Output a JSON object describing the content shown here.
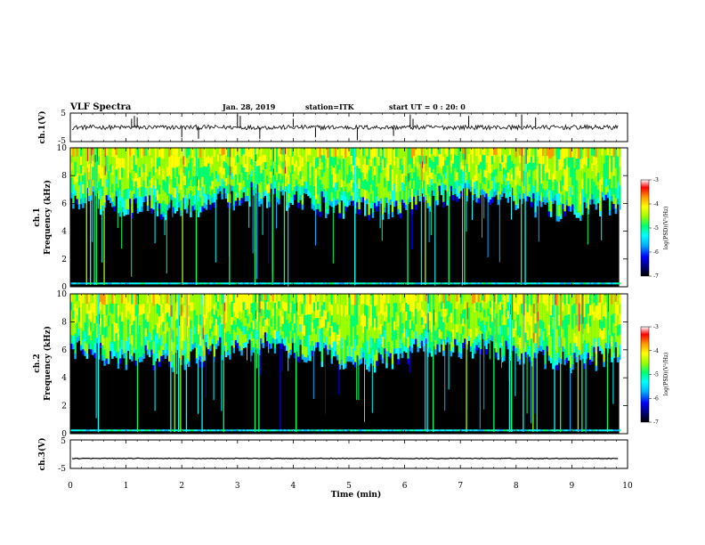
{
  "header": {
    "title": "VLF Spectra",
    "date": "Jan. 28, 2019",
    "station": "station=ITK",
    "start": "start UT =  0 : 20: 0"
  },
  "colors": {
    "spectrogram_background": "#000000",
    "trace": "#000000",
    "colormap": [
      "#000000",
      "#00007a",
      "#0000ff",
      "#00b0ff",
      "#00ffff",
      "#00ff70",
      "#9aff00",
      "#ffff00",
      "#ff9a00",
      "#ff0000",
      "#ffffff"
    ]
  },
  "chart_data": [
    {
      "type": "line",
      "name": "ch1-waveform",
      "ylabel": "ch.1(V)",
      "yticks": [
        "5",
        "-5"
      ],
      "ylim": [
        -5,
        5
      ],
      "xlim": [
        0,
        10
      ],
      "baseline": 0,
      "spike_times_min": [
        1.1,
        1.15,
        1.2,
        2.0,
        2.3,
        3.0,
        3.05,
        3.4,
        4.0,
        4.4,
        5.15,
        5.8,
        6.1,
        6.15,
        7.15,
        8.1,
        8.35
      ],
      "spike_amplitudes": [
        3,
        4,
        3.5,
        -3.5,
        -4,
        4.5,
        4,
        -4,
        3,
        -3.5,
        -4.5,
        -3,
        4.5,
        3,
        4,
        4.5,
        3.5
      ]
    },
    {
      "type": "heatmap",
      "name": "ch1-spectrogram",
      "ylabel": "ch.1 Frequency (kHz)",
      "ylabel_lines": [
        "ch.1",
        "Frequency (kHz)"
      ],
      "yticks": [
        "0",
        "2",
        "4",
        "6",
        "8",
        "10"
      ],
      "ylim": [
        0,
        10
      ],
      "xlim": [
        0,
        9.85
      ],
      "noise_floor_khz": 6.3,
      "colorbar": {
        "label": "log(PSD)(V²/Hz)",
        "ticks": [
          "-3",
          "-4",
          "-5",
          "-6",
          "-7"
        ],
        "range": [
          -7,
          -3
        ]
      }
    },
    {
      "type": "heatmap",
      "name": "ch2-spectrogram",
      "ylabel": "ch.2 Frequency (kHz)",
      "ylabel_lines": [
        "ch.2",
        "Frequency (kHz)"
      ],
      "yticks": [
        "0",
        "2",
        "4",
        "6",
        "8",
        "10"
      ],
      "ylim": [
        0,
        10
      ],
      "xlim": [
        0,
        9.85
      ],
      "noise_floor_khz": 6.0,
      "colorbar": {
        "label": "log(PSD)(V²/Hz)",
        "ticks": [
          "-3",
          "-4",
          "-5",
          "-6",
          "-7"
        ],
        "range": [
          -7,
          -3
        ]
      }
    },
    {
      "type": "line",
      "name": "ch3-waveform",
      "ylabel": "ch.3(V)",
      "yticks": [
        "5",
        "-5"
      ],
      "ylim": [
        -5,
        5
      ],
      "xlim": [
        0,
        10
      ],
      "baseline": -1.5,
      "spike_times_min": [],
      "spike_amplitudes": []
    }
  ],
  "xaxis": {
    "label": "Time (min)",
    "ticks": [
      "0",
      "1",
      "2",
      "3",
      "4",
      "5",
      "6",
      "7",
      "8",
      "9",
      "10"
    ],
    "range": [
      0,
      10
    ]
  }
}
